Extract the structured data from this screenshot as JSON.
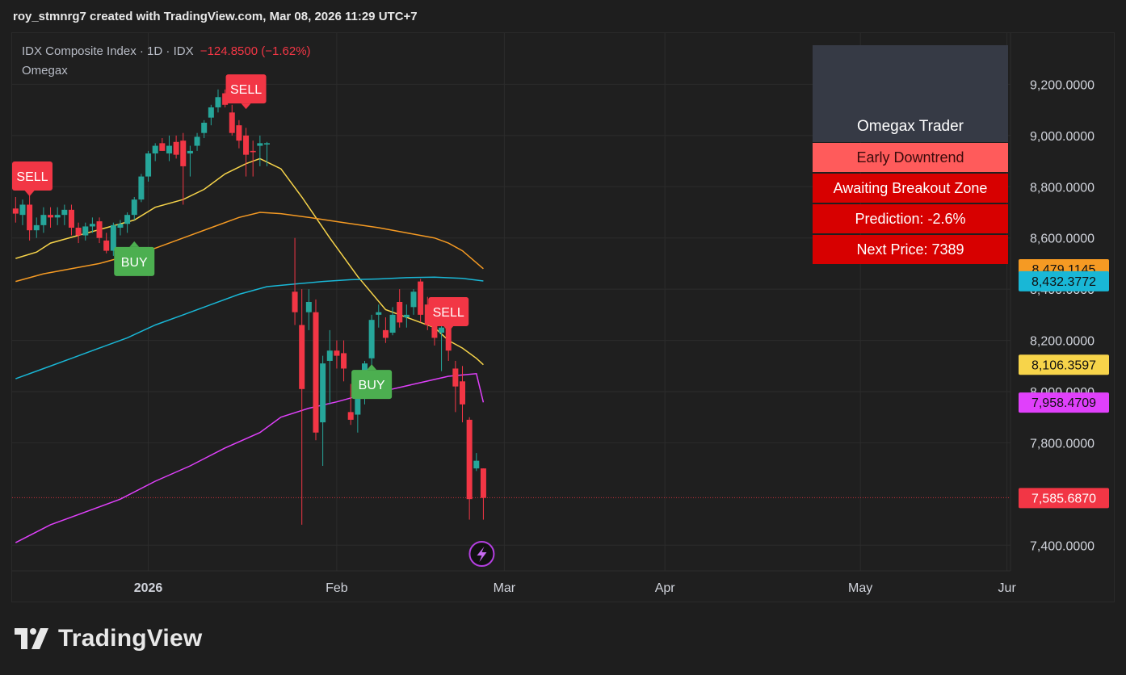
{
  "header": {
    "text": "roy_stmnrg7 created with TradingView.com, Mar 08, 2026 11:29 UTC+7"
  },
  "legend": {
    "symbol": "IDX Composite Index · 1D · IDX",
    "change": "−124.8500 (−1.62%)",
    "indicator": "Omegax"
  },
  "panel": {
    "title": "Omegax Trader",
    "status": "Early Downtrend",
    "zone": "Awaiting Breakout Zone",
    "prediction": "Prediction: -2.6%",
    "next_price": "Next Price: 7389"
  },
  "footer": {
    "logo_text": "TradingView"
  },
  "colors": {
    "up": "#26a69a",
    "down": "#f23645",
    "yellow_ma": "#f7d44a",
    "orange_ma": "#f59a23",
    "cyan_ma": "#19b7d6",
    "magenta_ma": "#e040fb",
    "buy": "#4caf50",
    "sell": "#f23645"
  },
  "chart_data": {
    "type": "candlestick",
    "y_range": [
      7300,
      9400
    ],
    "y_ticks": [
      {
        "value": 9200,
        "label": "9,200.0000"
      },
      {
        "value": 9000,
        "label": "9,000.0000"
      },
      {
        "value": 8800,
        "label": "8,800.0000"
      },
      {
        "value": 8600,
        "label": "8,600.0000"
      },
      {
        "value": 8400,
        "label": "8,400.0000"
      },
      {
        "value": 8200,
        "label": "8,200.0000"
      },
      {
        "value": 8000,
        "label": "8,000.0000"
      },
      {
        "value": 7800,
        "label": "7,800.0000"
      },
      {
        "value": 7400,
        "label": "7,400.0000"
      }
    ],
    "x_ticks": [
      {
        "index": 19,
        "label": "2026",
        "bold": true
      },
      {
        "index": 46,
        "label": "Feb",
        "bold": false
      },
      {
        "index": 70,
        "label": "Mar",
        "bold": false
      },
      {
        "index": 93,
        "label": "Apr",
        "bold": false
      },
      {
        "index": 121,
        "label": "May",
        "bold": false
      },
      {
        "index": 142,
        "label": "Jur",
        "bold": false
      }
    ],
    "x_count": 143,
    "candles": [
      [
        8715,
        8760,
        8660,
        8695
      ],
      [
        8690,
        8750,
        8650,
        8730
      ],
      [
        8730,
        8770,
        8590,
        8630
      ],
      [
        8630,
        8680,
        8600,
        8650
      ],
      [
        8650,
        8720,
        8620,
        8690
      ],
      [
        8690,
        8720,
        8640,
        8680
      ],
      [
        8680,
        8720,
        8650,
        8690
      ],
      [
        8690,
        8730,
        8650,
        8710
      ],
      [
        8710,
        8730,
        8610,
        8640
      ],
      [
        8640,
        8660,
        8580,
        8610
      ],
      [
        8610,
        8660,
        8590,
        8645
      ],
      [
        8645,
        8680,
        8620,
        8655
      ],
      [
        8665,
        8680,
        8580,
        8600
      ],
      [
        8590,
        8620,
        8540,
        8550
      ],
      [
        8550,
        8660,
        8530,
        8650
      ],
      [
        8640,
        8670,
        8610,
        8655
      ],
      [
        8655,
        8700,
        8620,
        8690
      ],
      [
        8690,
        8760,
        8670,
        8750
      ],
      [
        8750,
        8850,
        8740,
        8840
      ],
      [
        8840,
        8940,
        8820,
        8930
      ],
      [
        8930,
        8970,
        8900,
        8960
      ],
      [
        8970,
        8990,
        8940,
        8940
      ],
      [
        8930,
        9000,
        8900,
        8960
      ],
      [
        8975,
        9000,
        8910,
        8925
      ],
      [
        8980,
        9010,
        8730,
        8880
      ],
      [
        8930,
        8960,
        8840,
        8940
      ],
      [
        8960,
        9010,
        8940,
        8995
      ],
      [
        9010,
        9060,
        8990,
        9050
      ],
      [
        9070,
        9120,
        9040,
        9110
      ],
      [
        9110,
        9180,
        9090,
        9150
      ],
      [
        9165,
        9180,
        9110,
        9120
      ],
      [
        9090,
        9120,
        9000,
        9010
      ],
      [
        9040,
        9060,
        8950,
        8980
      ],
      [
        9000,
        9030,
        8840,
        8925
      ],
      [
        8940,
        8980,
        8840,
        8935
      ],
      [
        8960,
        9000,
        8880,
        8970
      ],
      [
        8965,
        8975,
        8880,
        8970
      ],
      [
        8390,
        8600,
        8260,
        8310
      ],
      [
        8260,
        8400,
        7480,
        8010
      ],
      [
        8310,
        8400,
        8240,
        8350
      ],
      [
        8310,
        8360,
        7810,
        7840
      ],
      [
        7880,
        8140,
        7710,
        8110
      ],
      [
        8120,
        8240,
        7950,
        8160
      ],
      [
        8160,
        8200,
        8090,
        8140
      ],
      [
        8150,
        8200,
        8040,
        8090
      ],
      [
        7920,
        8030,
        7870,
        7890
      ],
      [
        7910,
        8000,
        7840,
        7990
      ],
      [
        7990,
        8120,
        7950,
        8110
      ],
      [
        8130,
        8300,
        8100,
        8280
      ],
      [
        8300,
        8340,
        8250,
        8310
      ],
      [
        8240,
        8290,
        8190,
        8210
      ],
      [
        8230,
        8330,
        8220,
        8300
      ],
      [
        8350,
        8400,
        8250,
        8270
      ],
      [
        8290,
        8340,
        8250,
        8300
      ],
      [
        8330,
        8400,
        8300,
        8390
      ],
      [
        8430,
        8440,
        8270,
        8300
      ],
      [
        8340,
        8370,
        8240,
        8260
      ],
      [
        8340,
        8360,
        8180,
        8210
      ],
      [
        8230,
        8260,
        8080,
        8250
      ],
      [
        8280,
        8320,
        8120,
        8160
      ],
      [
        8090,
        8120,
        7920,
        8020
      ],
      [
        8040,
        8100,
        7880,
        7950
      ],
      [
        7890,
        7900,
        7500,
        7580
      ],
      [
        7700,
        7760,
        7690,
        7730
      ],
      [
        7700,
        7700,
        7500,
        7585
      ]
    ],
    "bar_x": [
      0,
      1,
      2,
      3,
      4,
      5,
      6,
      7,
      8,
      9,
      10,
      11,
      12,
      13,
      14,
      15,
      16,
      17,
      18,
      19,
      20,
      21,
      22,
      23,
      24,
      25,
      26,
      27,
      28,
      29,
      30,
      31,
      32,
      33,
      34,
      35,
      36,
      40,
      41,
      42,
      43,
      44,
      45,
      46,
      47,
      48,
      49,
      50,
      51,
      52,
      53,
      54,
      55,
      56,
      57,
      58,
      59,
      60,
      61,
      62,
      63,
      64,
      65,
      66,
      67
    ],
    "series": [
      {
        "name": "MA1",
        "color": "yellow_ma",
        "points": [
          [
            0,
            8520
          ],
          [
            3,
            8545
          ],
          [
            5,
            8580
          ],
          [
            9,
            8610
          ],
          [
            13,
            8640
          ],
          [
            17,
            8670
          ],
          [
            20,
            8720
          ],
          [
            24,
            8750
          ],
          [
            27,
            8790
          ],
          [
            30,
            8850
          ],
          [
            33,
            8890
          ],
          [
            35,
            8910
          ],
          [
            38,
            8870
          ],
          [
            41,
            8760
          ],
          [
            45,
            8600
          ],
          [
            49,
            8450
          ],
          [
            53,
            8320
          ],
          [
            57,
            8280
          ],
          [
            60,
            8250
          ],
          [
            62,
            8200
          ],
          [
            64,
            8170
          ],
          [
            66,
            8130
          ],
          [
            67,
            8105
          ]
        ]
      },
      {
        "name": "MA2",
        "color": "orange_ma",
        "points": [
          [
            0,
            8430
          ],
          [
            4,
            8460
          ],
          [
            8,
            8480
          ],
          [
            12,
            8500
          ],
          [
            16,
            8530
          ],
          [
            20,
            8560
          ],
          [
            24,
            8600
          ],
          [
            28,
            8640
          ],
          [
            32,
            8680
          ],
          [
            35,
            8700
          ],
          [
            38,
            8695
          ],
          [
            42,
            8680
          ],
          [
            47,
            8660
          ],
          [
            52,
            8640
          ],
          [
            56,
            8620
          ],
          [
            60,
            8600
          ],
          [
            62,
            8580
          ],
          [
            64,
            8550
          ],
          [
            67,
            8480
          ]
        ]
      },
      {
        "name": "MA3",
        "color": "cyan_ma",
        "points": [
          [
            0,
            8050
          ],
          [
            4,
            8090
          ],
          [
            8,
            8130
          ],
          [
            12,
            8170
          ],
          [
            16,
            8210
          ],
          [
            20,
            8260
          ],
          [
            24,
            8300
          ],
          [
            28,
            8340
          ],
          [
            32,
            8380
          ],
          [
            36,
            8410
          ],
          [
            40,
            8420
          ],
          [
            44,
            8430
          ],
          [
            48,
            8437
          ],
          [
            52,
            8440
          ],
          [
            56,
            8445
          ],
          [
            60,
            8447
          ],
          [
            64,
            8442
          ],
          [
            67,
            8432
          ]
        ]
      },
      {
        "name": "MA4",
        "color": "magenta_ma",
        "points": [
          [
            0,
            7410
          ],
          [
            5,
            7480
          ],
          [
            10,
            7530
          ],
          [
            15,
            7580
          ],
          [
            20,
            7650
          ],
          [
            25,
            7710
          ],
          [
            30,
            7780
          ],
          [
            35,
            7840
          ],
          [
            38,
            7900
          ],
          [
            42,
            7935
          ],
          [
            46,
            7960
          ],
          [
            50,
            7990
          ],
          [
            54,
            8010
          ],
          [
            58,
            8035
          ],
          [
            62,
            8060
          ],
          [
            66,
            8070
          ],
          [
            67,
            7958
          ]
        ]
      }
    ],
    "signals": [
      {
        "type": "SELL",
        "index": 2,
        "value": 8760
      },
      {
        "type": "SELL",
        "index": 33,
        "value": 9100
      },
      {
        "type": "BUY",
        "index": 17,
        "value": 8590
      },
      {
        "type": "BUY",
        "index": 51,
        "value": 8110
      },
      {
        "type": "SELL",
        "index": 62,
        "value": 8230
      }
    ],
    "price_tags": [
      {
        "label": "8,479.1145",
        "value": 8479.1145,
        "color": "orange_ma",
        "text_color": "#111111"
      },
      {
        "label": "8,432.3772",
        "value": 8432.3772,
        "color": "cyan_ma",
        "text_color": "#111111"
      },
      {
        "label": "8,106.3597",
        "value": 8106.3597,
        "color": "yellow_ma",
        "text_color": "#111111"
      },
      {
        "label": "7,958.4709",
        "value": 7958.4709,
        "color": "magenta_ma",
        "text_color": "#111111"
      },
      {
        "label": "7,585.6870",
        "value": 7585.687,
        "color": "down",
        "text_color": "#ffffff"
      }
    ],
    "last_price": 7585.687
  }
}
